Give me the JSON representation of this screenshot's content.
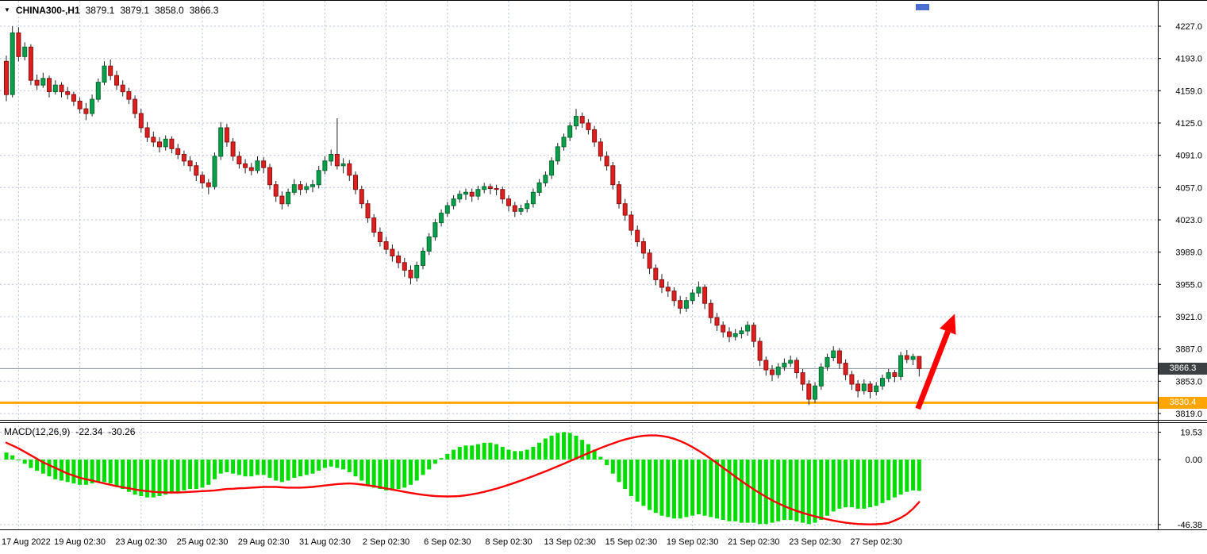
{
  "header": {
    "dropdown_icon": "▼",
    "symbol": "CHINA300-,H1",
    "open": "3879.1",
    "high": "3879.1",
    "low": "3858.0",
    "close": "3866.3"
  },
  "macd_header": {
    "label": "MACD(12,26,9)",
    "macd_value": "-22.34",
    "signal_value": "-30.26"
  },
  "badges": {
    "current_price": "3866.3",
    "orange_level": "3830.4"
  },
  "axes": {
    "price_labels": [
      "4227.0",
      "4193.0",
      "4159.0",
      "4125.0",
      "4091.0",
      "4057.0",
      "4023.0",
      "3989.0",
      "3955.0",
      "3921.0",
      "3887.0",
      "3853.0",
      "3819.0"
    ],
    "macd_labels": [
      "19.53",
      "0.00",
      "-46.38"
    ],
    "macd_values": [
      19.53,
      0,
      -46.38
    ],
    "date_labels": [
      {
        "text": "17 Aug 2022",
        "i": 2
      },
      {
        "text": "19 Aug 02:30",
        "i": 12
      },
      {
        "text": "23 Aug 02:30",
        "i": 22
      },
      {
        "text": "25 Aug 02:30",
        "i": 32
      },
      {
        "text": "29 Aug 02:30",
        "i": 42
      },
      {
        "text": "31 Aug 02:30",
        "i": 52
      },
      {
        "text": "2 Sep 02:30",
        "i": 62
      },
      {
        "text": "6 Sep 02:30",
        "i": 72
      },
      {
        "text": "8 Sep 02:30",
        "i": 82
      },
      {
        "text": "13 Sep 02:30",
        "i": 92
      },
      {
        "text": "15 Sep 02:30",
        "i": 102
      },
      {
        "text": "19 Sep 02:30",
        "i": 112
      },
      {
        "text": "21 Sep 02:30",
        "i": 122
      },
      {
        "text": "23 Sep 02:30",
        "i": 132
      },
      {
        "text": "27 Sep 02:30",
        "i": 142
      }
    ]
  },
  "colors": {
    "up": "#0a9e4a",
    "up_stroke": "#056a30",
    "down": "#dd1f1f",
    "down_stroke": "#8e1212",
    "wick": "#222222",
    "grid": "#b9c3dd",
    "hist": "#00dd00",
    "signal": "#ff0000",
    "orange": "#ffa500",
    "price_line": "#8a9099",
    "arrow": "#ff0000",
    "badge_dark": "#3c4043",
    "scroll_thumb": "#4a6fd0"
  },
  "chart_data": {
    "type": "candlestick",
    "symbol": "CHINA300-",
    "timeframe": "H1",
    "title": "CHINA300-,H1 3879.1 3879.1 3858.0 3866.3",
    "price_axis_range": [
      3819.0,
      4227.0
    ],
    "macd_axis_range": [
      -46.38,
      19.53
    ],
    "levels": {
      "orange_line": 3830.4,
      "current_price": 3866.3
    },
    "candles": [
      [
        4190,
        4196,
        4148,
        4155
      ],
      [
        4155,
        4227,
        4152,
        4220
      ],
      [
        4220,
        4226,
        4190,
        4195
      ],
      [
        4195,
        4210,
        4191,
        4205
      ],
      [
        4205,
        4208,
        4165,
        4170
      ],
      [
        4170,
        4176,
        4160,
        4165
      ],
      [
        4165,
        4178,
        4162,
        4172
      ],
      [
        4172,
        4175,
        4152,
        4158
      ],
      [
        4158,
        4170,
        4155,
        4165
      ],
      [
        4165,
        4168,
        4152,
        4158
      ],
      [
        4158,
        4163,
        4150,
        4155
      ],
      [
        4155,
        4158,
        4143,
        4148
      ],
      [
        4148,
        4152,
        4135,
        4140
      ],
      [
        4140,
        4146,
        4128,
        4135
      ],
      [
        4135,
        4155,
        4132,
        4150
      ],
      [
        4150,
        4172,
        4147,
        4168
      ],
      [
        4168,
        4190,
        4165,
        4185
      ],
      [
        4185,
        4192,
        4170,
        4175
      ],
      [
        4175,
        4180,
        4160,
        4165
      ],
      [
        4165,
        4170,
        4153,
        4158
      ],
      [
        4158,
        4162,
        4145,
        4150
      ],
      [
        4150,
        4154,
        4130,
        4135
      ],
      [
        4135,
        4140,
        4115,
        4120
      ],
      [
        4120,
        4126,
        4105,
        4110
      ],
      [
        4110,
        4116,
        4100,
        4105
      ],
      [
        4105,
        4110,
        4094,
        4100
      ],
      [
        4100,
        4112,
        4096,
        4108
      ],
      [
        4108,
        4111,
        4093,
        4098
      ],
      [
        4098,
        4103,
        4087,
        4092
      ],
      [
        4092,
        4096,
        4080,
        4085
      ],
      [
        4085,
        4090,
        4074,
        4080
      ],
      [
        4080,
        4084,
        4064,
        4070
      ],
      [
        4070,
        4074,
        4056,
        4062
      ],
      [
        4062,
        4066,
        4050,
        4058
      ],
      [
        4058,
        4094,
        4055,
        4090
      ],
      [
        4090,
        4126,
        4086,
        4120
      ],
      [
        4120,
        4124,
        4100,
        4105
      ],
      [
        4105,
        4109,
        4085,
        4090
      ],
      [
        4090,
        4095,
        4077,
        4082
      ],
      [
        4082,
        4087,
        4072,
        4078
      ],
      [
        4078,
        4083,
        4070,
        4075
      ],
      [
        4075,
        4090,
        4072,
        4085
      ],
      [
        4085,
        4089,
        4072,
        4078
      ],
      [
        4078,
        4082,
        4055,
        4060
      ],
      [
        4060,
        4064,
        4042,
        4048
      ],
      [
        4048,
        4053,
        4034,
        4040
      ],
      [
        4040,
        4056,
        4037,
        4052
      ],
      [
        4052,
        4066,
        4049,
        4060
      ],
      [
        4060,
        4064,
        4049,
        4055
      ],
      [
        4055,
        4062,
        4051,
        4058
      ],
      [
        4058,
        4065,
        4052,
        4060
      ],
      [
        4060,
        4080,
        4056,
        4075
      ],
      [
        4075,
        4090,
        4071,
        4085
      ],
      [
        4085,
        4097,
        4080,
        4092
      ],
      [
        4092,
        4130,
        4076,
        4080
      ],
      [
        4080,
        4088,
        4072,
        4082
      ],
      [
        4082,
        4086,
        4064,
        4070
      ],
      [
        4070,
        4074,
        4050,
        4055
      ],
      [
        4055,
        4059,
        4035,
        4040
      ],
      [
        4040,
        4044,
        4020,
        4025
      ],
      [
        4025,
        4029,
        4005,
        4010
      ],
      [
        4010,
        4015,
        3995,
        4000
      ],
      [
        4000,
        4005,
        3987,
        3992
      ],
      [
        3992,
        3997,
        3979,
        3985
      ],
      [
        3985,
        3990,
        3972,
        3978
      ],
      [
        3978,
        3983,
        3963,
        3970
      ],
      [
        3970,
        3975,
        3955,
        3962
      ],
      [
        3962,
        3979,
        3958,
        3975
      ],
      [
        3975,
        3994,
        3971,
        3990
      ],
      [
        3990,
        4009,
        3986,
        4005
      ],
      [
        4005,
        4024,
        4001,
        4020
      ],
      [
        4020,
        4034,
        4016,
        4030
      ],
      [
        4030,
        4042,
        4026,
        4038
      ],
      [
        4038,
        4049,
        4034,
        4045
      ],
      [
        4045,
        4054,
        4041,
        4050
      ],
      [
        4050,
        4056,
        4044,
        4052
      ],
      [
        4052,
        4056,
        4042,
        4048
      ],
      [
        4048,
        4059,
        4044,
        4055
      ],
      [
        4055,
        4062,
        4051,
        4058
      ],
      [
        4058,
        4061,
        4050,
        4056
      ],
      [
        4056,
        4060,
        4049,
        4055
      ],
      [
        4055,
        4058,
        4040,
        4045
      ],
      [
        4045,
        4049,
        4032,
        4038
      ],
      [
        4038,
        4042,
        4026,
        4032
      ],
      [
        4032,
        4039,
        4028,
        4035
      ],
      [
        4035,
        4044,
        4031,
        4040
      ],
      [
        4040,
        4056,
        4036,
        4052
      ],
      [
        4052,
        4066,
        4048,
        4062
      ],
      [
        4062,
        4074,
        4058,
        4070
      ],
      [
        4070,
        4089,
        4066,
        4085
      ],
      [
        4085,
        4104,
        4081,
        4100
      ],
      [
        4100,
        4114,
        4096,
        4110
      ],
      [
        4110,
        4126,
        4106,
        4122
      ],
      [
        4122,
        4140,
        4118,
        4132
      ],
      [
        4132,
        4136,
        4120,
        4125
      ],
      [
        4125,
        4129,
        4113,
        4118
      ],
      [
        4118,
        4122,
        4100,
        4105
      ],
      [
        4105,
        4109,
        4085,
        4090
      ],
      [
        4090,
        4095,
        4075,
        4080
      ],
      [
        4080,
        4084,
        4055,
        4060
      ],
      [
        4060,
        4064,
        4035,
        4040
      ],
      [
        4040,
        4045,
        4022,
        4028
      ],
      [
        4028,
        4032,
        4007,
        4012
      ],
      [
        4012,
        4017,
        3995,
        4000
      ],
      [
        4000,
        4004,
        3982,
        3988
      ],
      [
        3988,
        3992,
        3966,
        3972
      ],
      [
        3972,
        3976,
        3954,
        3960
      ],
      [
        3960,
        3966,
        3946,
        3952
      ],
      [
        3952,
        3958,
        3942,
        3948
      ],
      [
        3948,
        3952,
        3932,
        3938
      ],
      [
        3938,
        3943,
        3924,
        3930
      ],
      [
        3930,
        3942,
        3926,
        3938
      ],
      [
        3938,
        3950,
        3934,
        3946
      ],
      [
        3946,
        3958,
        3942,
        3952
      ],
      [
        3952,
        3955,
        3929,
        3935
      ],
      [
        3935,
        3939,
        3914,
        3920
      ],
      [
        3920,
        3925,
        3906,
        3912
      ],
      [
        3912,
        3916,
        3899,
        3905
      ],
      [
        3905,
        3910,
        3894,
        3900
      ],
      [
        3900,
        3908,
        3896,
        3903
      ],
      [
        3903,
        3910,
        3898,
        3906
      ],
      [
        3906,
        3916,
        3901,
        3912
      ],
      [
        3912,
        3915,
        3889,
        3895
      ],
      [
        3895,
        3899,
        3869,
        3875
      ],
      [
        3875,
        3879,
        3859,
        3865
      ],
      [
        3865,
        3870,
        3853,
        3860
      ],
      [
        3860,
        3872,
        3856,
        3868
      ],
      [
        3868,
        3877,
        3864,
        3872
      ],
      [
        3872,
        3880,
        3868,
        3875
      ],
      [
        3875,
        3878,
        3856,
        3862
      ],
      [
        3862,
        3866,
        3843,
        3850
      ],
      [
        3850,
        3854,
        3828,
        3834
      ],
      [
        3834,
        3852,
        3830,
        3848
      ],
      [
        3848,
        3872,
        3844,
        3868
      ],
      [
        3868,
        3882,
        3864,
        3878
      ],
      [
        3878,
        3890,
        3874,
        3885
      ],
      [
        3885,
        3888,
        3866,
        3872
      ],
      [
        3872,
        3876,
        3854,
        3860
      ],
      [
        3860,
        3864,
        3844,
        3850
      ],
      [
        3850,
        3854,
        3836,
        3843
      ],
      [
        3843,
        3855,
        3839,
        3850
      ],
      [
        3850,
        3853,
        3835,
        3842
      ],
      [
        3842,
        3852,
        3838,
        3848
      ],
      [
        3848,
        3860,
        3844,
        3856
      ],
      [
        3856,
        3866,
        3852,
        3862
      ],
      [
        3862,
        3865,
        3852,
        3858
      ],
      [
        3858,
        3884,
        3854,
        3880
      ],
      [
        3880,
        3886,
        3872,
        3876
      ],
      [
        3876,
        3882,
        3870,
        3879
      ],
      [
        3879.1,
        3879.1,
        3858.0,
        3866.3
      ]
    ],
    "macd": {
      "histogram": [
        5,
        3,
        0,
        -3,
        -6,
        -8,
        -10,
        -12,
        -14,
        -15,
        -16,
        -17,
        -18,
        -18,
        -17,
        -16,
        -16,
        -17,
        -19,
        -21,
        -23,
        -25,
        -26,
        -27,
        -27,
        -26,
        -25,
        -24,
        -23,
        -22,
        -21,
        -21,
        -20,
        -18,
        -14,
        -10,
        -9,
        -10,
        -11,
        -12,
        -12,
        -11,
        -11,
        -13,
        -15,
        -16,
        -15,
        -13,
        -12,
        -11,
        -10,
        -8,
        -6,
        -5,
        -6,
        -7,
        -9,
        -12,
        -15,
        -18,
        -20,
        -21,
        -22,
        -22,
        -21,
        -20,
        -18,
        -15,
        -11,
        -7,
        -3,
        1,
        4,
        7,
        9,
        10,
        10,
        11,
        12,
        12,
        11,
        9,
        7,
        6,
        6,
        7,
        9,
        12,
        15,
        17,
        19,
        19.5,
        19,
        17,
        14,
        11,
        7,
        2,
        -4,
        -10,
        -16,
        -21,
        -26,
        -30,
        -33,
        -36,
        -38,
        -40,
        -41,
        -42,
        -42,
        -41,
        -40,
        -39,
        -40,
        -41,
        -42,
        -43,
        -44,
        -44,
        -45,
        -45,
        -45,
        -46,
        -46,
        -45,
        -44,
        -43,
        -43,
        -44,
        -45,
        -46,
        -45,
        -43,
        -40,
        -37,
        -35,
        -34,
        -34,
        -35,
        -35,
        -34,
        -33,
        -31,
        -29,
        -27,
        -25,
        -23,
        -22,
        -22.34
      ],
      "signal": [
        12,
        10,
        8,
        5.5,
        3,
        0.5,
        -2,
        -4,
        -6,
        -8,
        -10,
        -11.5,
        -13,
        -14,
        -15,
        -16,
        -17,
        -18,
        -19,
        -19.8,
        -20.5,
        -21.3,
        -22,
        -22.5,
        -23,
        -23.3,
        -23.5,
        -23.5,
        -23.5,
        -23.3,
        -23,
        -22.8,
        -22.5,
        -22.3,
        -22,
        -21.5,
        -21,
        -20.8,
        -20.5,
        -20.3,
        -20,
        -19.8,
        -19.5,
        -19.5,
        -19.5,
        -19.8,
        -20,
        -20,
        -20,
        -19.8,
        -19.5,
        -19,
        -18.5,
        -18,
        -17.5,
        -17.2,
        -17,
        -17.3,
        -17.8,
        -18.4,
        -19,
        -19.8,
        -20.6,
        -21.4,
        -22.2,
        -23,
        -23.8,
        -24.5,
        -25.1,
        -25.6,
        -26,
        -26.2,
        -26.3,
        -26.2,
        -26,
        -25.5,
        -24.8,
        -24,
        -23,
        -21.9,
        -20.7,
        -19.4,
        -18,
        -16.5,
        -15,
        -13.4,
        -11.8,
        -10.1,
        -8.4,
        -6.6,
        -4.8,
        -3,
        -1.1,
        0.8,
        2.7,
        4.6,
        6.4,
        8.2,
        9.9,
        11.5,
        13,
        14.3,
        15.4,
        16.3,
        16.9,
        17.2,
        17.2,
        16.8,
        16,
        14.8,
        13.2,
        11.2,
        8.9,
        6.3,
        3.5,
        0.5,
        -2.6,
        -5.8,
        -9,
        -12.2,
        -15.3,
        -18.3,
        -21.2,
        -24,
        -26.6,
        -29,
        -31.2,
        -33.2,
        -35,
        -36.6,
        -38,
        -39.3,
        -40.5,
        -41.6,
        -42.6,
        -43.5,
        -44.3,
        -45,
        -45.5,
        -45.9,
        -46.1,
        -46.2,
        -46.1,
        -45.8,
        -45.2,
        -43.5,
        -41.5,
        -38.8,
        -35,
        -30.26
      ]
    },
    "annotations": [
      {
        "shape": "up-arrow",
        "at_index": 148.8,
        "from_price": 3824,
        "dx_index": 6,
        "to_price": 3924
      }
    ]
  }
}
